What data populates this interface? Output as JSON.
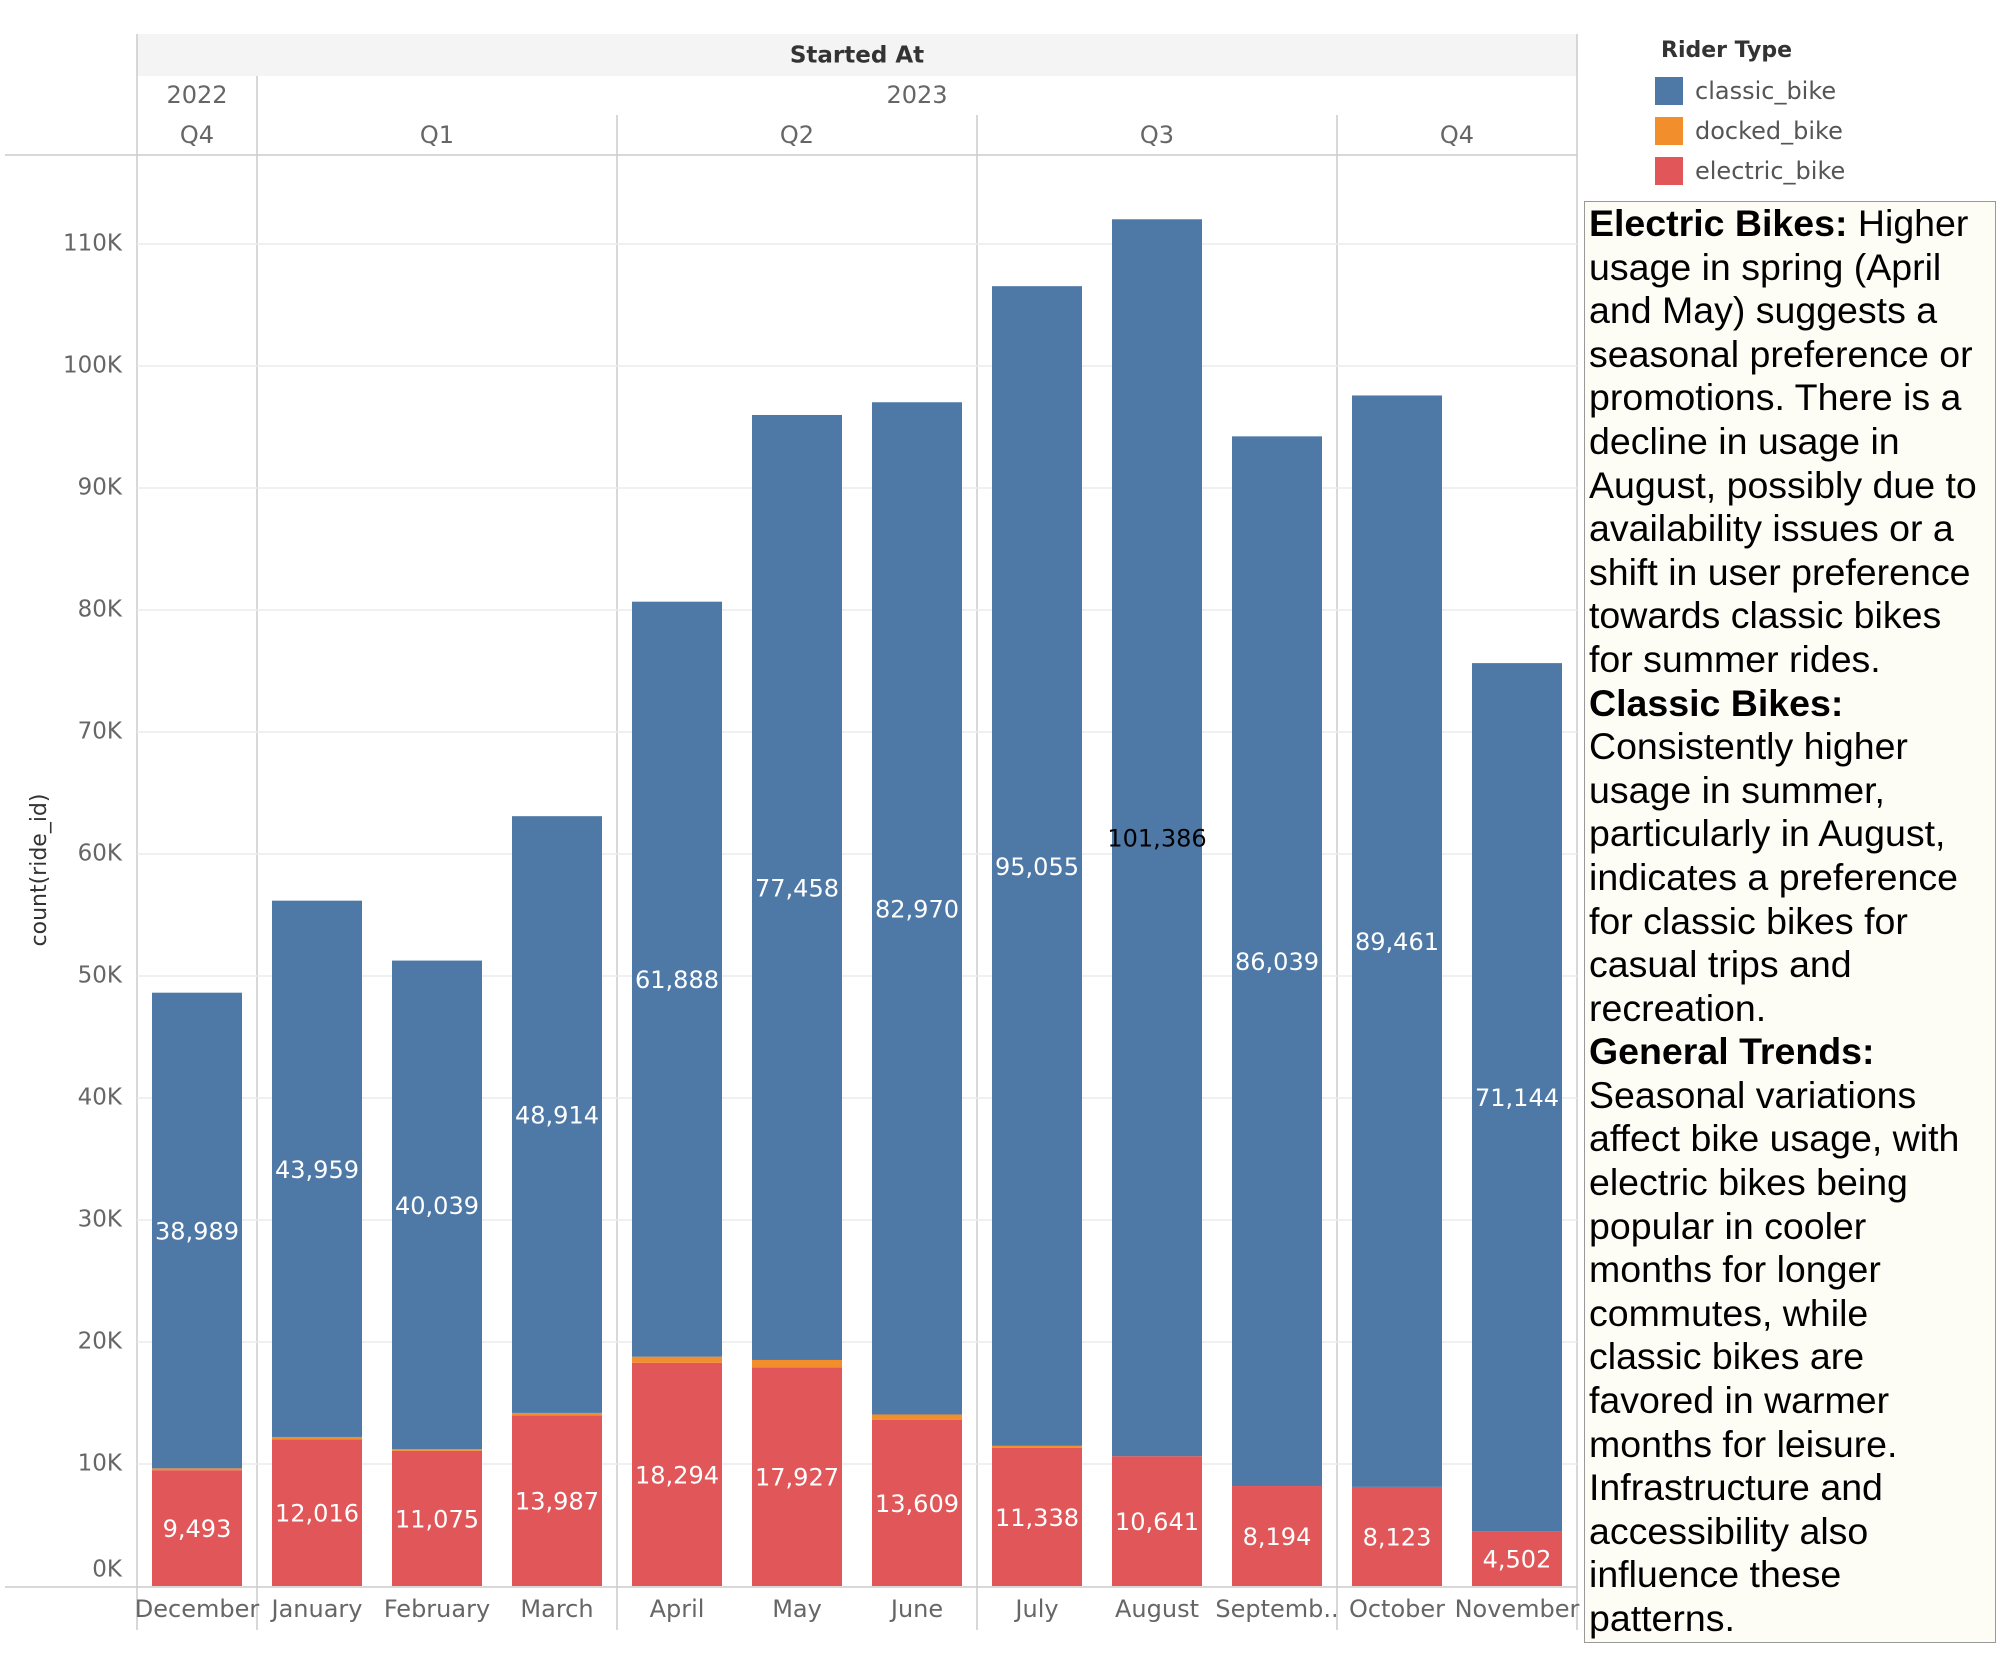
{
  "chart_data": {
    "type": "stacked-bar",
    "header_title": "Started At",
    "ylabel": "count(ride_id)",
    "ylim": [
      0,
      115000
    ],
    "yticks": [
      0,
      10000,
      20000,
      30000,
      40000,
      50000,
      60000,
      70000,
      80000,
      90000,
      100000,
      110000
    ],
    "ytick_labels": [
      "0K",
      "10K",
      "20K",
      "30K",
      "40K",
      "50K",
      "60K",
      "70K",
      "80K",
      "90K",
      "100K",
      "110K"
    ],
    "grid": true,
    "years": [
      {
        "label": "2022",
        "span": [
          0,
          0
        ]
      },
      {
        "label": "2023",
        "span": [
          1,
          11
        ]
      }
    ],
    "quarters": [
      {
        "label": "Q4",
        "span": [
          0,
          0
        ]
      },
      {
        "label": "Q1",
        "span": [
          1,
          3
        ]
      },
      {
        "label": "Q2",
        "span": [
          4,
          6
        ]
      },
      {
        "label": "Q3",
        "span": [
          7,
          9
        ]
      },
      {
        "label": "Q4",
        "span": [
          10,
          11
        ]
      }
    ],
    "categories": [
      "December",
      "January",
      "February",
      "March",
      "April",
      "May",
      "June",
      "July",
      "August",
      "Septemb..",
      "October",
      "November"
    ],
    "series": [
      {
        "name": "electric_bike",
        "color": "#e15759",
        "values": [
          9493,
          12016,
          11075,
          13987,
          18294,
          17927,
          13609,
          11338,
          10641,
          8194,
          8123,
          4502
        ]
      },
      {
        "name": "docked_bike",
        "color": "#f28e2b",
        "values": [
          150,
          200,
          150,
          200,
          500,
          600,
          450,
          150,
          0,
          0,
          0,
          0
        ]
      },
      {
        "name": "classic_bike",
        "color": "#4e79a7",
        "values": [
          38989,
          43959,
          40039,
          48914,
          61888,
          77458,
          82970,
          95055,
          101386,
          86039,
          89461,
          71144
        ]
      }
    ],
    "data_labels": {
      "electric_bike": [
        "9,493",
        "12,016",
        "11,075",
        "13,987",
        "18,294",
        "17,927",
        "13,609",
        "11,338",
        "10,641",
        "8,194",
        "8,123",
        "4,502"
      ],
      "classic_bike": [
        "38,989",
        "43,959",
        "40,039",
        "48,914",
        "61,888",
        "77,458",
        "82,970",
        "95,055",
        "101,386",
        "86,039",
        "89,461",
        "71,144"
      ]
    },
    "dark_label_index": 8,
    "legend": {
      "title": "Rider Type",
      "items": [
        {
          "label": "classic_bike",
          "color": "#4e79a7"
        },
        {
          "label": "docked_bike",
          "color": "#f28e2b"
        },
        {
          "label": "electric_bike",
          "color": "#e15759"
        }
      ]
    }
  },
  "annotation": {
    "sections": [
      {
        "heading": "Electric Bikes:",
        "text": "Higher usage in spring (April and May) suggests a seasonal preference or promotions. There is a decline in usage in August, possibly due to availability issues or a shift in user preference towards classic bikes for summer rides."
      },
      {
        "heading": "Classic Bikes:",
        "text": "Consistently higher usage in summer, particularly in August, indicates a preference for classic bikes for casual trips and recreation."
      },
      {
        "heading": "General Trends:",
        "text": "Seasonal variations affect bike usage, with electric bikes being popular in cooler months for longer commutes, while classic bikes are favored in warmer months for leisure. Infrastructure and accessibility also influence these patterns."
      }
    ]
  }
}
